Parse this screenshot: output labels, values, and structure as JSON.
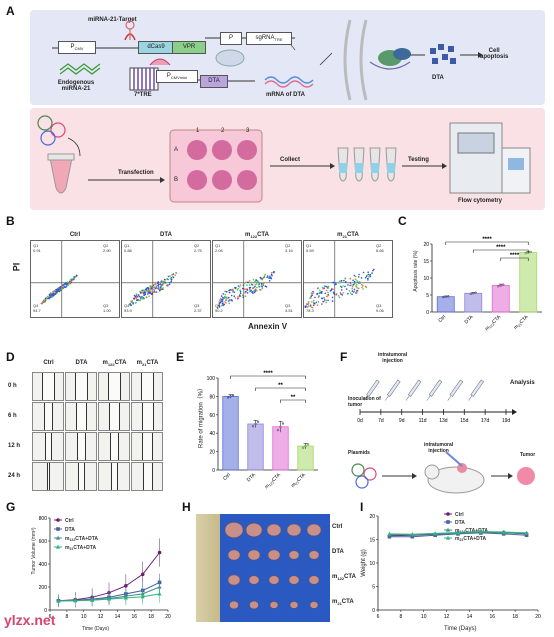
{
  "panel_labels": {
    "a": "A",
    "b": "B",
    "c": "C",
    "d": "D",
    "e": "E",
    "f": "F",
    "g": "G",
    "h": "H",
    "i": "I"
  },
  "panel_a": {
    "mirna_target": "miRNA-21-Target",
    "pcmv": "P",
    "pcmv_sub": "CMV",
    "dcas9": "dCas9",
    "vpr": "VPR",
    "p_label": "P",
    "sgrna": "sgRNA",
    "sgrna_sub": "TRE",
    "endogenous": "Endogenous",
    "mirna21": "miRNA-21",
    "tre": "7*TRE",
    "pcmvmini": "P",
    "pcmvmini_sub": "CMVmini",
    "dta": "DTA",
    "mrna_dta": "mRNA of DTA",
    "dta2": "DTA",
    "cell": "Cell",
    "apoptosis": "apoptosis",
    "transfection": "Transfection",
    "collect": "Collect",
    "testing": "Testing",
    "flow_cytometry": "Flow cytometry",
    "plate_cols": [
      "1",
      "2",
      "3"
    ],
    "plate_rows": [
      "A",
      "B"
    ]
  },
  "panel_b": {
    "ylabel": "PI",
    "xlabel": "Annexin V",
    "plots": [
      {
        "title": "Ctrl",
        "sub": "",
        "q1": "0.91",
        "q2": "2.90",
        "q3": "1.00",
        "q4": "94.7",
        "q1n": "Q1",
        "q2n": "Q2",
        "q3n": "Q3",
        "q4n": "Q4"
      },
      {
        "title": "DTA",
        "sub": "",
        "q1": "0.88",
        "q2": "2.75",
        "q3": "2.37",
        "q4": "93.9",
        "q1n": "Q1",
        "q2n": "Q2",
        "q3n": "Q3",
        "q4n": "Q4"
      },
      {
        "title": "m",
        "sub": "122",
        "title2": "CTA",
        "q1": "2.04",
        "q2": "3.16",
        "q3": "4.51",
        "q4": "90.2",
        "q1n": "Q1",
        "q2n": "Q2",
        "q3n": "Q3",
        "q4n": "Q4"
      },
      {
        "title": "m",
        "sub": "21",
        "title2": "CTA",
        "q1": "5.59",
        "q2": "6.66",
        "q3": "9.06",
        "q4": "78.3",
        "q1n": "Q1",
        "q2n": "Q2",
        "q3n": "Q3",
        "q4n": "Q4"
      }
    ]
  },
  "panel_d": {
    "cols": [
      {
        "t": "Ctrl",
        "s": "",
        "t2": ""
      },
      {
        "t": "DTA",
        "s": "",
        "t2": ""
      },
      {
        "t": "m",
        "s": "122",
        "t2": "CTA"
      },
      {
        "t": "m",
        "s": "21",
        "t2": "CTA"
      }
    ],
    "rows": [
      "0 h",
      "6 h",
      "12 h",
      "24 h"
    ]
  },
  "panel_f": {
    "intratumoral": "intratumoral",
    "injection": "injection",
    "inoculation": "Inoculation of",
    "tumor": "tumor",
    "days": [
      "0d",
      "7d",
      "9d",
      "11d",
      "13d",
      "15d",
      "17d",
      "19d"
    ],
    "analysis": "Analysis",
    "plasmids": "Plasmids",
    "intratumoral2": "intratumoral",
    "injection2": "injection",
    "tumor2": "Tumor"
  },
  "panel_h": {
    "rows": [
      {
        "t": "Ctrl",
        "s": "",
        "t2": ""
      },
      {
        "t": "DTA",
        "s": "",
        "t2": ""
      },
      {
        "t": "m",
        "s": "122",
        "t2": "CTA"
      },
      {
        "t": "m",
        "s": "21",
        "t2": "CTA"
      }
    ]
  },
  "watermark": "ylzx.net",
  "colors": {
    "ctrl": "#5b6fd6",
    "dta": "#8e86d9",
    "m122": "#e16ad2",
    "m21": "#a7d86a",
    "g_ctrl": "#6a1f6f",
    "g_dta": "#4b5ea8",
    "g_m122": "#3d8f8a",
    "g_m21": "#2fb37e"
  },
  "chart_data": [
    {
      "type": "bar",
      "panel": "C",
      "ylabel": "Apoptosis rate (%)",
      "ylim": [
        0,
        20
      ],
      "yticks": [
        0,
        5,
        10,
        15,
        20
      ],
      "categories": [
        "Ctrl",
        "DTA",
        "m122CTA",
        "m21CTA"
      ],
      "values": [
        4.5,
        5.5,
        7.8,
        17.5
      ],
      "errors": [
        0.2,
        0.3,
        0.4,
        0.3
      ],
      "significance": [
        "****",
        "****",
        "****"
      ]
    },
    {
      "type": "bar",
      "panel": "E",
      "ylabel": "Rate of migration（%）",
      "ylim": [
        0,
        100
      ],
      "yticks": [
        0,
        20,
        40,
        60,
        80,
        100
      ],
      "categories": [
        "Ctrl",
        "DTA",
        "m122CTA",
        "m21CTA"
      ],
      "values": [
        80,
        50,
        47,
        26
      ],
      "errors": [
        2,
        4,
        6,
        3
      ],
      "significance": [
        "****",
        "**",
        "**"
      ]
    },
    {
      "type": "line",
      "panel": "G",
      "ylabel": "Tumor Volume (mm³)",
      "xlabel": "Time (Days)",
      "xlim": [
        6,
        20
      ],
      "xticks": [
        6,
        8,
        10,
        12,
        14,
        16,
        18,
        20
      ],
      "ylim": [
        0,
        800
      ],
      "yticks": [
        0,
        200,
        400,
        600,
        800
      ],
      "x": [
        7,
        9,
        11,
        13,
        15,
        17,
        19
      ],
      "series": [
        {
          "name": "Ctrl",
          "values": [
            80,
            90,
            110,
            150,
            210,
            310,
            500
          ]
        },
        {
          "name": "DTA",
          "values": [
            80,
            85,
            95,
            110,
            140,
            170,
            240
          ]
        },
        {
          "name": "m122CTA+DTA",
          "values": [
            80,
            82,
            88,
            100,
            120,
            140,
            200
          ]
        },
        {
          "name": "m21CTA+DTA",
          "values": [
            78,
            80,
            85,
            95,
            105,
            115,
            140
          ]
        }
      ]
    },
    {
      "type": "line",
      "panel": "I",
      "ylabel": "Weight (g)",
      "xlabel": "Time (Days)",
      "xlim": [
        6,
        20
      ],
      "xticks": [
        6,
        8,
        10,
        12,
        14,
        16,
        18,
        20
      ],
      "ylim": [
        0,
        20
      ],
      "yticks": [
        0,
        5,
        10,
        15,
        20
      ],
      "x": [
        7,
        9,
        11,
        13,
        15,
        17,
        19
      ],
      "series": [
        {
          "name": "Ctrl",
          "values": [
            15.8,
            15.9,
            16.1,
            16.4,
            16.6,
            16.5,
            16.2
          ]
        },
        {
          "name": "DTA",
          "values": [
            15.6,
            15.6,
            15.9,
            16.2,
            16.4,
            16.2,
            15.9
          ]
        },
        {
          "name": "m122CTA+DTA",
          "values": [
            16.0,
            16.0,
            16.2,
            16.3,
            16.5,
            16.4,
            16.3
          ]
        },
        {
          "name": "m21CTA+DTA",
          "values": [
            16.2,
            16.1,
            16.3,
            16.5,
            16.7,
            16.6,
            16.4
          ]
        }
      ]
    }
  ]
}
